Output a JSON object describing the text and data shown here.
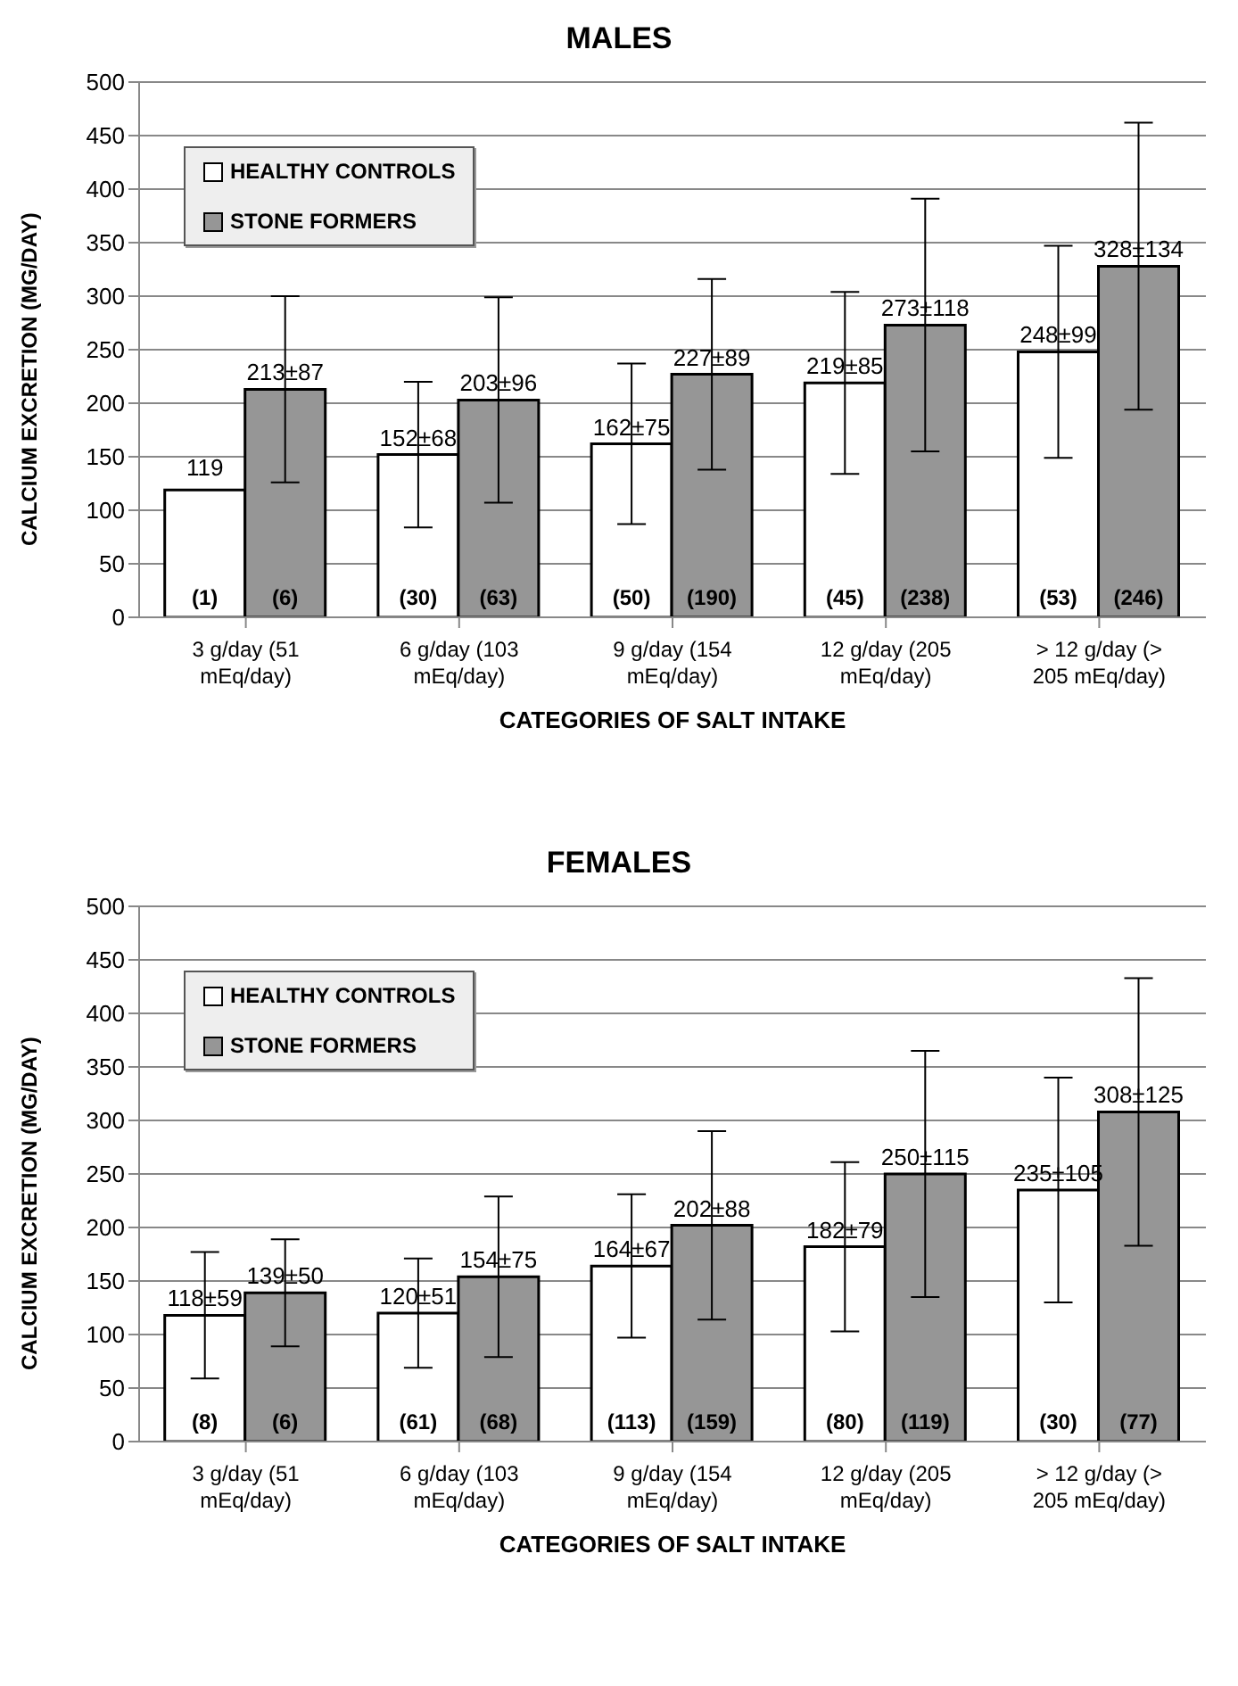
{
  "chart_data": [
    {
      "type": "bar",
      "title": "MALES",
      "xlabel": "CATEGORIES OF SALT INTAKE",
      "ylabel": "CALCIUM EXCRETION (MG/DAY)",
      "categories": [
        "3 g/day (51 mEq/day)",
        "6 g/day (103 mEq/day)",
        "9 g/day (154 mEq/day)",
        "12 g/day (205 mEq/day)",
        "> 12 g/day (> 205 mEq/day)"
      ],
      "series": [
        {
          "name": "HEALTHY CONTROLS",
          "color": "#ffffff",
          "values": [
            119,
            152,
            162,
            219,
            248
          ],
          "errors": [
            null,
            68,
            75,
            85,
            99
          ],
          "value_labels": [
            "119",
            "152±68",
            "162±75",
            "219±85",
            "248±99"
          ]
        },
        {
          "name": "STONE FORMERS",
          "color": "#969696",
          "values": [
            213,
            203,
            227,
            273,
            328
          ],
          "errors": [
            87,
            96,
            89,
            118,
            134
          ],
          "value_labels": [
            "213±87",
            "203±96",
            "227±89",
            "273±118",
            "328±134"
          ]
        }
      ],
      "annotations": [
        {
          "text": "(1)",
          "x": "3 g/day (51 mEq/day)",
          "y": 20
        },
        {
          "text": "(6)",
          "x": "3 g/day (51 mEq/day)",
          "y": 20
        },
        {
          "text": "(30)",
          "x": "6 g/day (103 mEq/day)",
          "y": 20
        },
        {
          "text": "(63)",
          "x": "6 g/day (103 mEq/day)",
          "y": 20
        },
        {
          "text": "(50)",
          "x": "9 g/day (154 mEq/day)",
          "y": 20
        },
        {
          "text": "(190)",
          "x": "9 g/day (154 mEq/day)",
          "y": 20
        },
        {
          "text": "(45)",
          "x": "12 g/day (205 mEq/day)",
          "y": 20
        },
        {
          "text": "(238)",
          "x": "12 g/day (205 mEq/day)",
          "y": 20
        },
        {
          "text": "(53)",
          "x": "> 12 g/day (> 205 mEq/day)",
          "y": 20
        },
        {
          "text": "(246)",
          "x": "> 12 g/day (> 205 mEq/day)",
          "y": 20
        }
      ],
      "ylim": [
        0,
        500
      ],
      "yticks": [
        0,
        50,
        100,
        150,
        200,
        250,
        300,
        350,
        400,
        450,
        500
      ],
      "grid": "y",
      "legend": "top left"
    },
    {
      "type": "bar",
      "title": "FEMALES",
      "xlabel": "CATEGORIES OF SALT INTAKE",
      "ylabel": "CALCIUM EXCRETION (MG/DAY)",
      "categories": [
        "3 g/day (51 mEq/day)",
        "6 g/day (103 mEq/day)",
        "9 g/day (154 mEq/day)",
        "12 g/day (205 mEq/day)",
        "> 12 g/day (> 205 mEq/day)"
      ],
      "series": [
        {
          "name": "HEALTHY CONTROLS",
          "color": "#ffffff",
          "values": [
            118,
            120,
            164,
            182,
            235
          ],
          "errors": [
            59,
            51,
            67,
            79,
            105
          ],
          "value_labels": [
            "118±59",
            "120±51",
            "164±67",
            "182±79",
            "235±105"
          ]
        },
        {
          "name": "STONE FORMERS",
          "color": "#969696",
          "values": [
            139,
            154,
            202,
            250,
            308
          ],
          "errors": [
            50,
            75,
            88,
            115,
            125
          ],
          "value_labels": [
            "139±50",
            "154±75",
            "202±88",
            "250±115",
            "308±125"
          ]
        }
      ],
      "annotations": [
        {
          "text": "(8)",
          "x": "3 g/day (51 mEq/day)",
          "y": 20
        },
        {
          "text": "(6)",
          "x": "3 g/day (51 mEq/day)",
          "y": 20
        },
        {
          "text": "(61)",
          "x": "6 g/day (103 mEq/day)",
          "y": 20
        },
        {
          "text": "(68)",
          "x": "6 g/day (103 mEq/day)",
          "y": 20
        },
        {
          "text": "(113)",
          "x": "9 g/day (154 mEq/day)",
          "y": 20
        },
        {
          "text": "(159)",
          "x": "9 g/day (154 mEq/day)",
          "y": 20
        },
        {
          "text": "(80)",
          "x": "12 g/day (205 mEq/day)",
          "y": 20
        },
        {
          "text": "(119)",
          "x": "12 g/day (205 mEq/day)",
          "y": 20
        },
        {
          "text": "(30)",
          "x": "> 12 g/day (> 205 mEq/day)",
          "y": 20
        },
        {
          "text": "(77)",
          "x": "> 12 g/day (> 205 mEq/day)",
          "y": 20
        }
      ],
      "ylim": [
        0,
        500
      ],
      "yticks": [
        0,
        50,
        100,
        150,
        200,
        250,
        300,
        350,
        400,
        450,
        500
      ],
      "grid": "y",
      "legend": "top left"
    }
  ]
}
